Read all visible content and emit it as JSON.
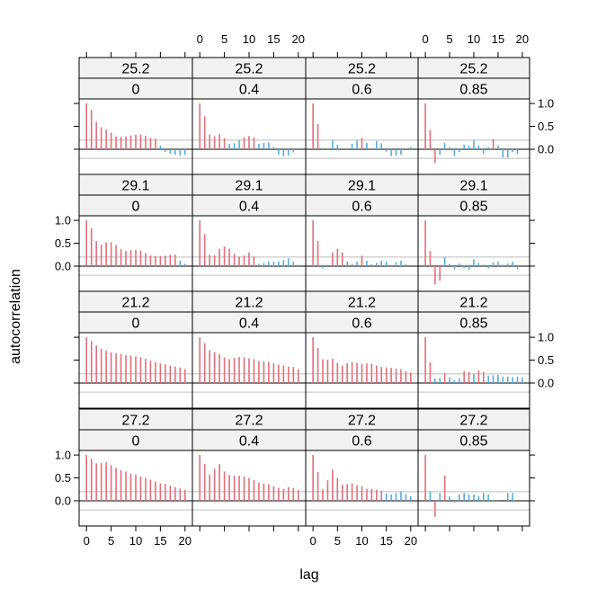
{
  "chart_data": {
    "type": "bar",
    "title": "",
    "xlabel": "lag",
    "ylabel": "autocorrelation",
    "x_ticks": [
      "0",
      "5",
      "10",
      "15",
      "20"
    ],
    "y_ticks": [
      "0.0",
      "0.5",
      "1.0"
    ],
    "x_tick_values": [
      0,
      5,
      10,
      15,
      20
    ],
    "y_tick_values": [
      0,
      0.5,
      1
    ],
    "xlim": [
      -1.5,
      21.5
    ],
    "ylim": [
      -0.55,
      1.1
    ],
    "confidence_band": 0.2,
    "lower_ci": -0.2,
    "ci_values": [
      -0.2,
      0.2
    ],
    "axis_values": [
      0
    ],
    "colors": {
      "significant": "#E0707A",
      "insignificant": "#5AACE0",
      "reference": "#BDBDBD",
      "strip": "#F2F2F2"
    },
    "layout": {
      "columns": 4,
      "rows": 4
    },
    "strips": [
      "25.2",
      "29.1",
      "21.2",
      "27.2"
    ],
    "subgroups": [
      "0",
      "0.4",
      "0.6",
      "0.85"
    ],
    "panels": [
      {
        "group": "25.2",
        "sub": "0",
        "row": 0,
        "col": 0,
        "acf": [
          1.0,
          0.86,
          0.6,
          0.48,
          0.43,
          0.36,
          0.28,
          0.27,
          0.28,
          0.3,
          0.32,
          0.32,
          0.29,
          0.25,
          0.23,
          0.08,
          -0.06,
          -0.1,
          -0.12,
          -0.14,
          -0.12
        ]
      },
      {
        "group": "25.2",
        "sub": "0.4",
        "row": 0,
        "col": 1,
        "acf": [
          1.0,
          0.72,
          0.32,
          0.28,
          0.33,
          0.24,
          0.12,
          0.13,
          0.2,
          0.26,
          0.29,
          0.26,
          0.12,
          0.14,
          0.15,
          0.05,
          -0.12,
          -0.15,
          -0.14,
          -0.07,
          0.02
        ]
      },
      {
        "group": "25.2",
        "sub": "0.6",
        "row": 0,
        "col": 2,
        "acf": [
          1.0,
          0.55,
          0.02,
          -0.02,
          0.2,
          0.1,
          0.0,
          0.02,
          0.12,
          0.2,
          0.25,
          0.14,
          0.02,
          0.18,
          0.13,
          -0.05,
          -0.15,
          -0.14,
          -0.12,
          0.0,
          0.05
        ]
      },
      {
        "group": "25.2",
        "sub": "0.85",
        "row": 0,
        "col": 3,
        "acf": [
          1.0,
          0.42,
          -0.3,
          -0.12,
          0.14,
          0.04,
          -0.15,
          -0.06,
          0.1,
          0.08,
          0.2,
          0.08,
          -0.1,
          0.05,
          0.22,
          0.08,
          -0.18,
          -0.18,
          -0.06,
          -0.1,
          0.0
        ]
      },
      {
        "group": "29.1",
        "sub": "0",
        "row": 1,
        "col": 0,
        "acf": [
          1.0,
          0.83,
          0.55,
          0.47,
          0.52,
          0.52,
          0.46,
          0.37,
          0.33,
          0.35,
          0.36,
          0.34,
          0.28,
          0.23,
          0.22,
          0.22,
          0.23,
          0.25,
          0.25,
          0.12,
          0.05
        ]
      },
      {
        "group": "29.1",
        "sub": "0.4",
        "row": 1,
        "col": 1,
        "acf": [
          1.0,
          0.7,
          0.25,
          0.24,
          0.38,
          0.43,
          0.38,
          0.27,
          0.21,
          0.23,
          0.3,
          0.21,
          0.05,
          0.07,
          0.1,
          0.1,
          0.1,
          0.13,
          0.17,
          0.1,
          0.03
        ]
      },
      {
        "group": "29.1",
        "sub": "0.6",
        "row": 1,
        "col": 2,
        "acf": [
          1.0,
          0.55,
          -0.05,
          0.03,
          0.3,
          0.38,
          0.3,
          0.1,
          0.05,
          0.1,
          0.23,
          0.12,
          0.04,
          0.07,
          0.12,
          0.1,
          -0.02,
          0.09,
          0.12,
          0.04,
          0.0
        ]
      },
      {
        "group": "29.1",
        "sub": "0.85",
        "row": 1,
        "col": 3,
        "acf": [
          1.0,
          0.33,
          -0.4,
          -0.32,
          0.2,
          0.05,
          -0.07,
          0.06,
          -0.04,
          -0.08,
          0.15,
          0.07,
          0.03,
          -0.05,
          0.08,
          0.1,
          0.03,
          0.06,
          0.1,
          -0.06,
          0.0
        ]
      },
      {
        "group": "21.2",
        "sub": "0",
        "row": 2,
        "col": 0,
        "acf": [
          1.0,
          0.92,
          0.82,
          0.75,
          0.71,
          0.67,
          0.65,
          0.63,
          0.61,
          0.6,
          0.58,
          0.56,
          0.53,
          0.49,
          0.46,
          0.43,
          0.41,
          0.38,
          0.36,
          0.34,
          0.3
        ]
      },
      {
        "group": "21.2",
        "sub": "0.4",
        "row": 2,
        "col": 1,
        "acf": [
          1.0,
          0.87,
          0.72,
          0.67,
          0.63,
          0.56,
          0.52,
          0.55,
          0.57,
          0.56,
          0.54,
          0.52,
          0.48,
          0.47,
          0.46,
          0.43,
          0.4,
          0.38,
          0.36,
          0.35,
          0.3
        ]
      },
      {
        "group": "21.2",
        "sub": "0.6",
        "row": 2,
        "col": 2,
        "acf": [
          1.0,
          0.77,
          0.52,
          0.51,
          0.53,
          0.44,
          0.38,
          0.43,
          0.46,
          0.44,
          0.42,
          0.43,
          0.42,
          0.38,
          0.35,
          0.34,
          0.33,
          0.31,
          0.3,
          0.26,
          0.23
        ]
      },
      {
        "group": "21.2",
        "sub": "0.85",
        "row": 2,
        "col": 3,
        "acf": [
          1.0,
          0.45,
          0.1,
          0.11,
          0.21,
          0.12,
          0.06,
          0.1,
          0.26,
          0.24,
          0.2,
          0.27,
          0.24,
          0.16,
          0.17,
          0.18,
          0.14,
          0.14,
          0.13,
          0.14,
          0.12
        ]
      },
      {
        "group": "27.2",
        "sub": "0",
        "row": 3,
        "col": 0,
        "acf": [
          1.0,
          0.92,
          0.82,
          0.82,
          0.84,
          0.78,
          0.72,
          0.67,
          0.64,
          0.6,
          0.57,
          0.53,
          0.5,
          0.46,
          0.42,
          0.38,
          0.37,
          0.33,
          0.3,
          0.27,
          0.24
        ]
      },
      {
        "group": "27.2",
        "sub": "0.4",
        "row": 3,
        "col": 1,
        "acf": [
          1.0,
          0.8,
          0.57,
          0.7,
          0.8,
          0.64,
          0.56,
          0.55,
          0.55,
          0.53,
          0.5,
          0.45,
          0.4,
          0.38,
          0.36,
          0.32,
          0.28,
          0.26,
          0.3,
          0.28,
          0.24
        ]
      },
      {
        "group": "27.2",
        "sub": "0.6",
        "row": 3,
        "col": 2,
        "acf": [
          1.0,
          0.63,
          0.25,
          0.45,
          0.68,
          0.5,
          0.35,
          0.37,
          0.38,
          0.34,
          0.32,
          0.26,
          0.26,
          0.24,
          0.22,
          0.16,
          0.14,
          0.17,
          0.2,
          0.15,
          0.1
        ]
      },
      {
        "group": "27.2",
        "sub": "0.85",
        "row": 3,
        "col": 3,
        "acf": [
          1.0,
          0.2,
          -0.35,
          0.17,
          0.55,
          0.1,
          -0.04,
          0.14,
          0.17,
          0.14,
          0.14,
          0.1,
          0.17,
          0.14,
          0.02,
          -0.02,
          0.0,
          0.17,
          0.17,
          0.0,
          0.0
        ]
      }
    ]
  }
}
